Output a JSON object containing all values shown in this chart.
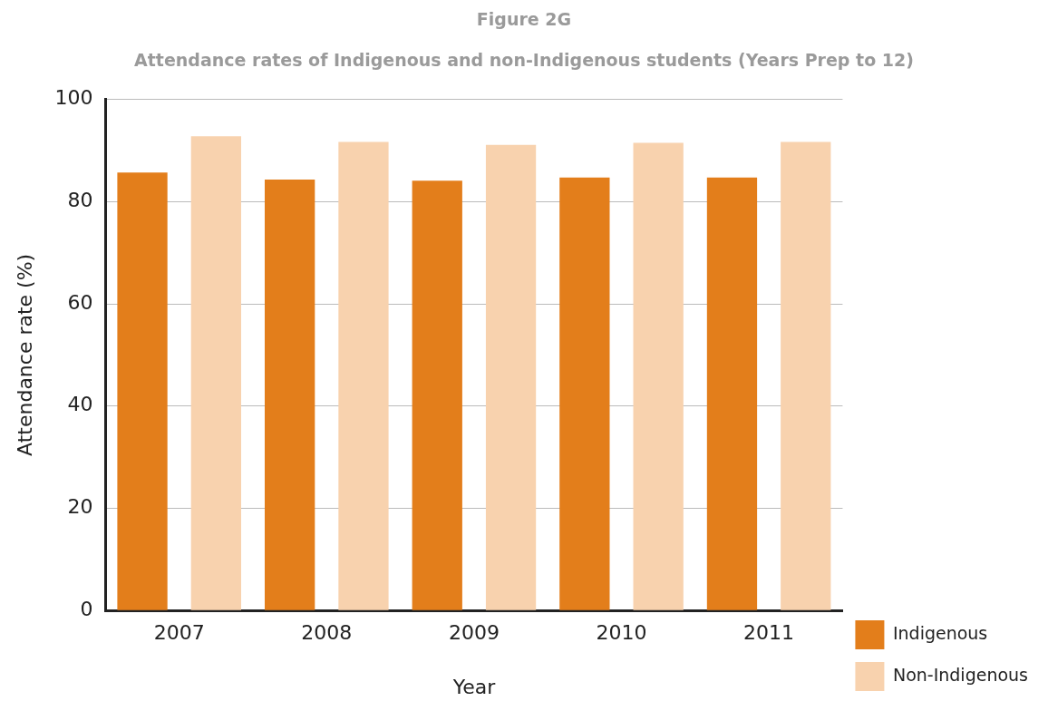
{
  "chart_data": {
    "type": "bar",
    "title": "Figure 2G",
    "subtitle": "Attendance rates of Indigenous and non-Indigenous students (Years Prep to 12)",
    "xlabel": "Year",
    "ylabel": "Attendance rate (%)",
    "categories": [
      "2007",
      "2008",
      "2009",
      "2010",
      "2011"
    ],
    "series": [
      {
        "name": "Indigenous",
        "color": "#e37e1b",
        "values": [
          85.7,
          84.3,
          84.1,
          84.7,
          84.7
        ]
      },
      {
        "name": "Non-Indigenous",
        "color": "#f8d2ae",
        "values": [
          92.8,
          91.7,
          91.1,
          91.5,
          91.7
        ]
      }
    ],
    "ylim": [
      0,
      100
    ],
    "yticks": [
      0,
      20,
      40,
      60,
      80,
      100
    ],
    "grid": "y",
    "legend": "bottom right"
  }
}
